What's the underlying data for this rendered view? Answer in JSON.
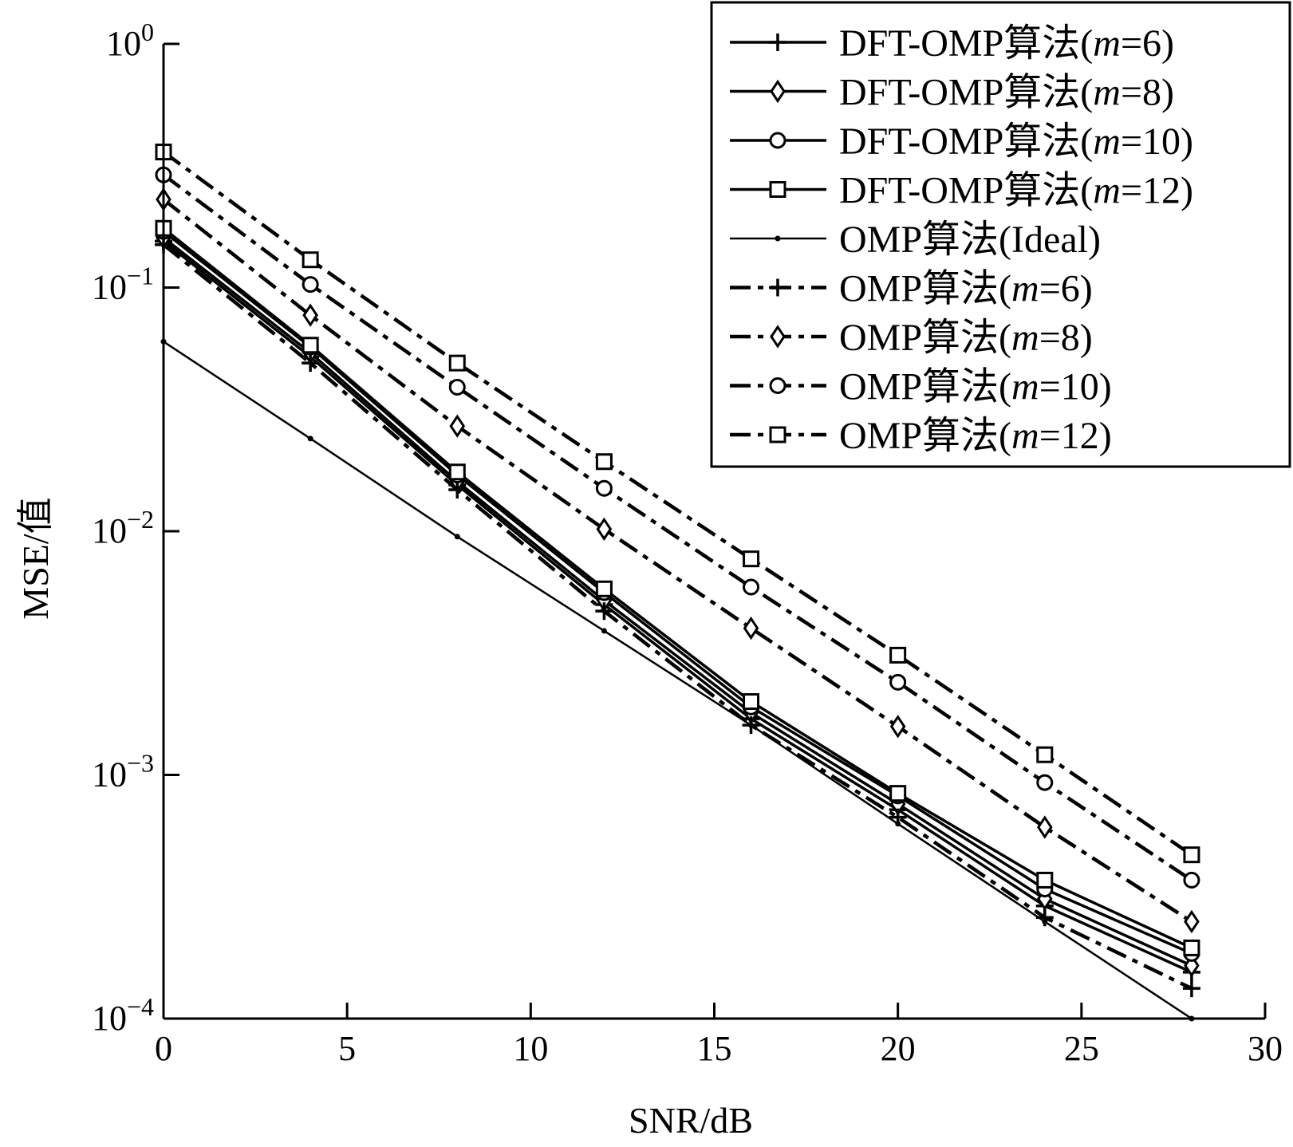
{
  "chart_data": {
    "type": "line",
    "xlabel": "SNR/dB",
    "ylabel": "MSE/值",
    "yscale": "log",
    "xlim": [
      0,
      30
    ],
    "ylim": [
      0.0001,
      1
    ],
    "xticks": [
      0,
      5,
      10,
      15,
      20,
      25,
      30
    ],
    "xtick_labels": [
      "0",
      "5",
      "10",
      "15",
      "20",
      "25",
      "30"
    ],
    "yticks": [
      1,
      0.1,
      0.01,
      0.001,
      0.0001
    ],
    "ytick_labels": [
      {
        "base": "10",
        "exp": "0"
      },
      {
        "base": "10",
        "exp": "−1"
      },
      {
        "base": "10",
        "exp": "−2"
      },
      {
        "base": "10",
        "exp": "−3"
      },
      {
        "base": "10",
        "exp": "−4"
      }
    ],
    "grid": false,
    "legend_position": "top-right",
    "x": [
      0,
      4,
      8,
      12,
      16,
      20,
      24,
      28
    ],
    "series": [
      {
        "name": "DFT-OMP算法(m=6)",
        "prefix": "DFT-OMP算法(",
        "var": "m",
        "suffix": "=6)",
        "style": "solid",
        "marker": "plus",
        "values": [
          0.155,
          0.052,
          0.0155,
          0.005,
          0.0017,
          0.00072,
          0.00029,
          0.000155
        ]
      },
      {
        "name": "DFT-OMP算法(m=8)",
        "prefix": "DFT-OMP算法(",
        "var": "m",
        "suffix": "=8)",
        "style": "solid",
        "marker": "diamond",
        "values": [
          0.16,
          0.054,
          0.016,
          0.0052,
          0.0018,
          0.00076,
          0.00031,
          0.000165
        ]
      },
      {
        "name": "DFT-OMP算法(m=10)",
        "prefix": "DFT-OMP算法(",
        "var": "m",
        "suffix": "=10)",
        "style": "solid",
        "marker": "circle",
        "values": [
          0.17,
          0.057,
          0.017,
          0.0056,
          0.0019,
          0.00082,
          0.00034,
          0.000185
        ]
      },
      {
        "name": "DFT-OMP算法(m=12)",
        "prefix": "DFT-OMP算法(",
        "var": "m",
        "suffix": "=12)",
        "style": "solid",
        "marker": "square",
        "values": [
          0.175,
          0.058,
          0.0175,
          0.0058,
          0.002,
          0.00084,
          0.00037,
          0.000195
        ]
      },
      {
        "name": "OMP算法(Ideal)",
        "prefix": "OMP算法(Ideal)",
        "var": "",
        "suffix": "",
        "style": "solid-thin",
        "marker": "dot",
        "values": [
          0.06,
          0.024,
          0.0095,
          0.0039,
          0.0016,
          0.00063,
          0.00025,
          0.0001
        ]
      },
      {
        "name": "OMP算法(m=6)",
        "prefix": "OMP算法(",
        "var": "m",
        "suffix": "=6)",
        "style": "dashdot",
        "marker": "plus",
        "values": [
          0.15,
          0.049,
          0.0148,
          0.0047,
          0.0016,
          0.00067,
          0.00026,
          0.000133
        ]
      },
      {
        "name": "OMP算法(m=8)",
        "prefix": "OMP算法(",
        "var": "m",
        "suffix": "=8)",
        "style": "dashdot",
        "marker": "diamond",
        "values": [
          0.23,
          0.077,
          0.027,
          0.0102,
          0.004,
          0.00158,
          0.00061,
          0.00025
        ]
      },
      {
        "name": "OMP算法(m=10)",
        "prefix": "OMP算法(",
        "var": "m",
        "suffix": "=10)",
        "style": "dashdot",
        "marker": "circle",
        "values": [
          0.29,
          0.103,
          0.039,
          0.015,
          0.0059,
          0.0024,
          0.00093,
          0.00037
        ]
      },
      {
        "name": "OMP算法(m=12)",
        "prefix": "OMP算法(",
        "var": "m",
        "suffix": "=12)",
        "style": "dashdot",
        "marker": "square",
        "values": [
          0.36,
          0.13,
          0.049,
          0.0193,
          0.0077,
          0.0031,
          0.00121,
          0.00047
        ]
      }
    ]
  }
}
